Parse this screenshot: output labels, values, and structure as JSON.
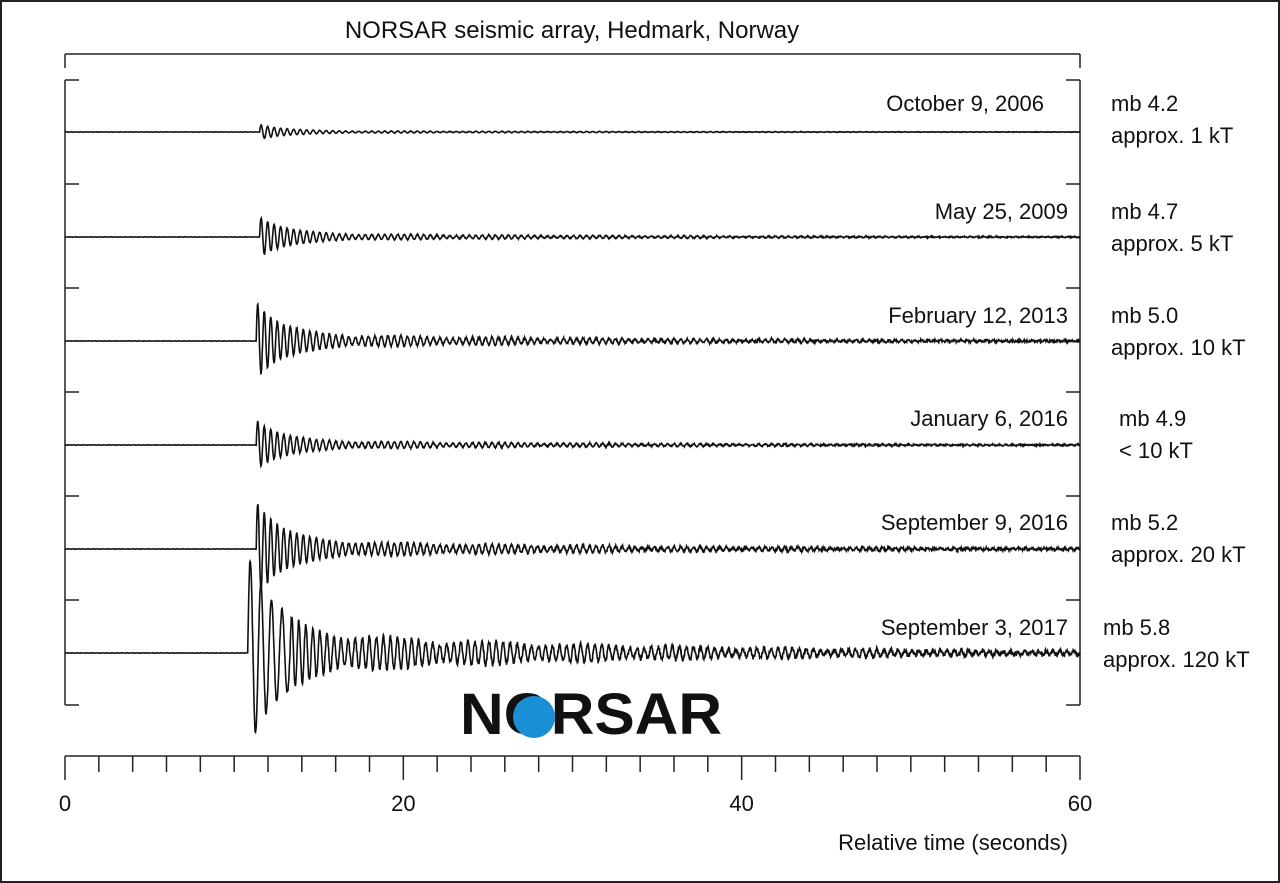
{
  "chart_data": {
    "type": "line",
    "title": "NORSAR seismic array, Hedmark, Norway",
    "xlabel": "Relative time (seconds)",
    "ylabel": "",
    "xlim": [
      0,
      60
    ],
    "xticks": [
      0,
      20,
      40,
      60
    ],
    "x_minor_step": 2,
    "grid": false,
    "logo_text": "NORSAR",
    "series": [
      {
        "date": "October 9, 2006",
        "magnitude": "mb 4.2",
        "yield": "approx. 1 kT",
        "onset": 11.5,
        "peak_amp": 0.08
      },
      {
        "date": "May 25, 2009",
        "magnitude": "mb 4.7",
        "yield": "approx. 5 kT",
        "onset": 11.5,
        "peak_amp": 0.22
      },
      {
        "date": "February 12, 2013",
        "magnitude": "mb 5.0",
        "yield": "approx. 10 kT",
        "onset": 11.3,
        "peak_amp": 0.42
      },
      {
        "date": "January 6, 2016",
        "magnitude": "mb 4.9",
        "yield": "< 10 kT",
        "onset": 11.3,
        "peak_amp": 0.27
      },
      {
        "date": "September 9, 2016",
        "magnitude": "mb 5.2",
        "yield": "approx. 20 kT",
        "onset": 11.3,
        "peak_amp": 0.52
      },
      {
        "date": "September 3, 2017",
        "magnitude": "mb 5.8",
        "yield": "approx. 120 kT",
        "onset": 10.8,
        "peak_amp": 1.0
      }
    ]
  },
  "colors": {
    "trace": "#111111",
    "logo_blue": "#0b3a63",
    "logo_circle": "#1a8fd6",
    "frame": "#222222"
  }
}
